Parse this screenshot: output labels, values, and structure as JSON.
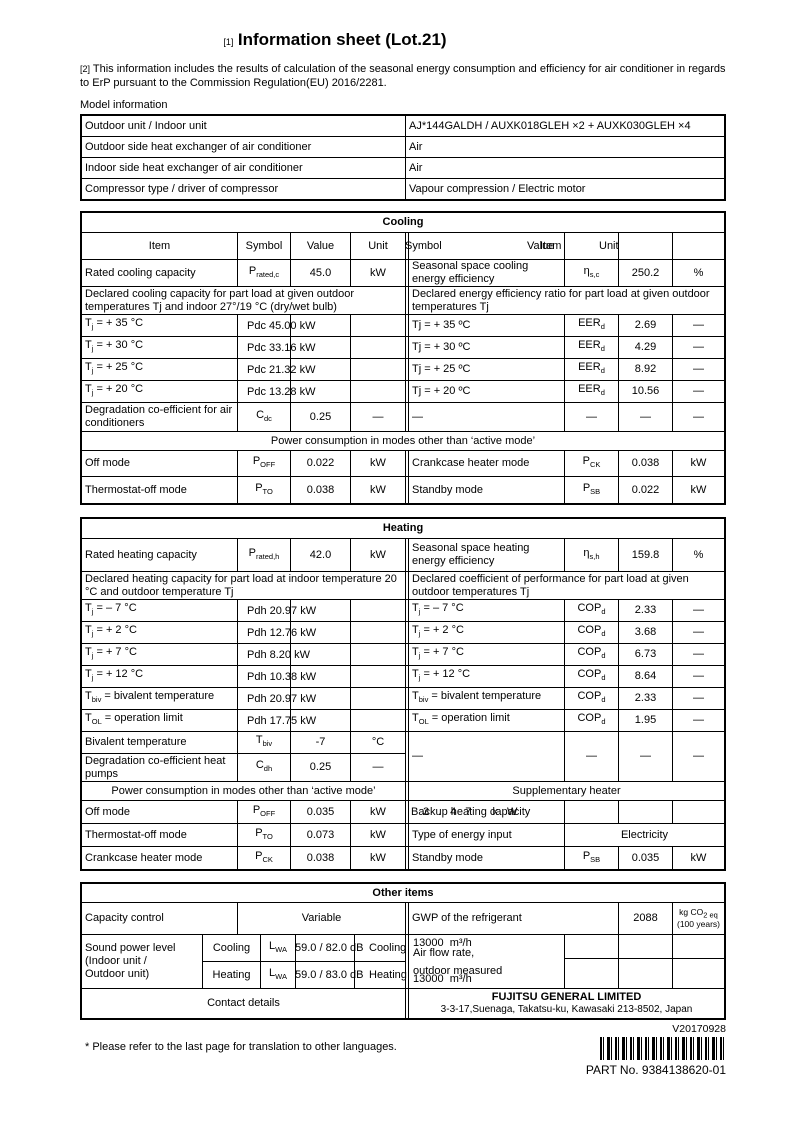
{
  "page": {
    "title_ref": "[1]",
    "title": "Information sheet (Lot.21)",
    "intro_ref": "[2]",
    "intro": "This information includes the results of calculation of the seasonal energy consumption and efficiency for air conditioner in regards to ErP pursuant to the Commission Regulation(EU) 2016/2281.",
    "model_info_label": "Model information",
    "version": "V20170928",
    "part_no": "PART No.  9384138620-01",
    "footnote": "* Please refer to the last page for translation to other languages."
  },
  "model_info": [
    {
      "label": "Outdoor unit / Indoor unit",
      "value": "AJ*144GALDH / AUXK018GLEH ×2 + AUXK030GLEH ×4"
    },
    {
      "label": "Outdoor side heat exchanger of air conditioner",
      "value": "Air"
    },
    {
      "label": "Indoor side heat exchanger of air conditioner",
      "value": "Air"
    },
    {
      "label": "Compressor type / driver of compressor",
      "value": "Vapour compression / Electric motor"
    }
  ],
  "cooling": {
    "title": "Cooling",
    "headers": {
      "item": "Item",
      "symbol": "Symbol",
      "value": "Value",
      "unit": "Unit"
    },
    "ghost_headers": [
      "Symbol",
      "Value",
      "Unit"
    ],
    "rated": {
      "left": [
        "Rated cooling capacity",
        "P~rated,c~",
        "45.0",
        "kW"
      ],
      "right": [
        "Seasonal space cooling energy efficiency",
        "η~s,c~",
        "250.2",
        "%"
      ]
    },
    "declared_left": "Declared cooling capacity for part load at given outdoor temperatures Tj and indoor 27°/19 °C (dry/wet bulb)",
    "declared_right": "Declared energy efficiency ratio for part load at given outdoor temperatures Tj",
    "part_load": [
      {
        "lt": "T~j~ = + 35 °C",
        "lv": "Pdc 45.00 kW",
        "rt": "Tj = + 35 ºC",
        "rs": "EER~d~",
        "rv": "2.69",
        "ru": "—"
      },
      {
        "lt": "T~j~ = + 30 °C",
        "lv": "Pdc 33.16 kW",
        "rt": "Tj = + 30 ºC",
        "rs": "EER~d~",
        "rv": "4.29",
        "ru": "—"
      },
      {
        "lt": "T~j~ = + 25 °C",
        "lv": "Pdc 21.32 kW",
        "rt": "Tj = + 25 ºC",
        "rs": "EER~d~",
        "rv": "8.92",
        "ru": "—"
      },
      {
        "lt": "T~j~ = + 20 °C",
        "lv": "Pdc 13.28 kW",
        "rt": "Tj = + 20 ºC",
        "rs": "EER~d~",
        "rv": "10.56",
        "ru": "—"
      }
    ],
    "degradation": {
      "left": [
        "Degradation co-efficient for air conditioners",
        "C~dc~",
        "0.25",
        "—"
      ],
      "right": [
        "—",
        "—",
        "—",
        "—"
      ]
    },
    "band": "Power consumption in modes other than ‘active mode’",
    "power": [
      {
        "left": [
          "Off mode",
          "P~OFF~",
          "0.022",
          "kW"
        ],
        "right": [
          "Crankcase heater mode",
          "P~CK~",
          "0.038",
          "kW"
        ]
      },
      {
        "left": [
          "Thermostat-off mode",
          "P~TO~",
          "0.038",
          "kW"
        ],
        "right": [
          "Standby mode",
          "P~SB~",
          "0.022",
          "kW"
        ]
      }
    ]
  },
  "heating": {
    "title": "Heating",
    "rated": {
      "left": [
        "Rated heating capacity",
        "P~rated,h~",
        "42.0",
        "kW"
      ],
      "right": [
        "Seasonal space heating energy efficiency",
        "η~s,h~",
        "159.8",
        "%"
      ]
    },
    "declared_left": "Declared heating capacity for part load at indoor temperature 20 °C and outdoor temperature Tj",
    "declared_right": "Declared coefficient of performance for part load at given outdoor temperatures Tj",
    "part_load": [
      {
        "lt": "T~j~ = – 7 °C",
        "lv": "Pdh 20.97 kW",
        "rt": "T~j~ = – 7 °C",
        "rs": "COP~d~",
        "rv": "2.33",
        "ru": "—"
      },
      {
        "lt": "T~j~ = + 2 °C",
        "lv": "Pdh 12.76 kW",
        "rt": "T~j~ = + 2 °C",
        "rs": "COP~d~",
        "rv": "3.68",
        "ru": "—"
      },
      {
        "lt": "T~j~ = + 7 °C",
        "lv": "Pdh 8.20 kW",
        "rt": "T~j~ = + 7 °C",
        "rs": "COP~d~",
        "rv": "6.73",
        "ru": "—"
      },
      {
        "lt": "T~j~ = + 12 °C",
        "lv": "Pdh 10.38 kW",
        "rt": "T~j~ = + 12 °C",
        "rs": "COP~d~",
        "rv": "8.64",
        "ru": "—"
      },
      {
        "lt": "T~biv~ = bivalent temperature",
        "lv": "Pdh 20.97 kW",
        "rt": "T~biv~ = bivalent temperature",
        "rs": "COP~d~",
        "rv": "2.33",
        "ru": "—"
      },
      {
        "lt": "T~OL~ = operation limit",
        "lv": "Pdh 17.75 kW",
        "rt": "T~OL~ = operation limit",
        "rs": "COP~d~",
        "rv": "1.95",
        "ru": "—"
      }
    ],
    "bivalent": [
      "Bivalent temperature",
      "T~biv~",
      "-7",
      "°C"
    ],
    "degradation": [
      "Degradation co-efficient heat pumps",
      "C~dh~",
      "0.25",
      "—"
    ],
    "dash_row": [
      "—",
      "—",
      "—",
      "—"
    ],
    "band_left": "Power consumption in modes other than ‘active mode’",
    "band_right": "Supplementary heater",
    "backup": {
      "label": "Backup heating capacity",
      "ghost": "3.47 kW"
    },
    "power_left": [
      [
        "Off mode",
        "P~OFF~",
        "0.035",
        "kW"
      ],
      [
        "Thermostat-off mode",
        "P~TO~",
        "0.073",
        "kW"
      ],
      [
        "Crankcase heater mode",
        "P~CK~",
        "0.038",
        "kW"
      ]
    ],
    "energy_input": {
      "label": "Type of energy input",
      "value": "Electricity"
    },
    "standby": [
      "Standby mode",
      "P~SB~",
      "0.035",
      "kW"
    ]
  },
  "other": {
    "title": "Other items",
    "capacity_control": {
      "label": "Capacity control",
      "value": "Variable"
    },
    "gwp": {
      "label": "GWP of the refrigerant",
      "value": "2088",
      "unit_line1": "kg CO~2 eq~",
      "unit_line2": "(100 years)"
    },
    "sound_label_lines": [
      "Sound power level",
      "(Indoor unit /",
      " Outdoor unit)"
    ],
    "sound_rows": [
      {
        "mode": "Cooling",
        "symbol": "L~WA~",
        "db": "59.0 / 82.0 dB",
        "ghost_mode": "Cooling",
        "air": "13000  m³/h"
      },
      {
        "mode": "Heating",
        "symbol": "L~WA~",
        "db": "59.0 / 83.0 dB",
        "ghost_mode": "Heating",
        "air": "13000  m³/h"
      }
    ],
    "airflow": {
      "line1": "Air flow rate,",
      "line2": "outdoor measured"
    },
    "contact": {
      "label": "Contact details",
      "company": "FUJITSU GENERAL LIMITED",
      "address": "3-3-17,Suenaga, Takatsu-ku, Kawasaki 213-8502, Japan"
    }
  }
}
